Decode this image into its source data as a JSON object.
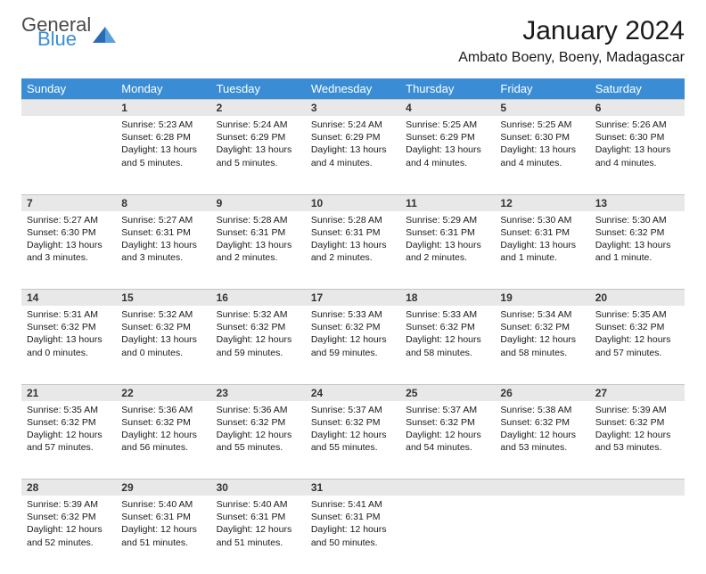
{
  "logo": {
    "general": "General",
    "blue": "Blue",
    "icon_color": "#2a6bb5"
  },
  "title": "January 2024",
  "location": "Ambato Boeny, Boeny, Madagascar",
  "colors": {
    "header_bg": "#3a8dd4",
    "header_fg": "#ffffff",
    "daynum_bg": "#e8e8e8",
    "cell_fg": "#1a1a1a"
  },
  "day_headers": [
    "Sunday",
    "Monday",
    "Tuesday",
    "Wednesday",
    "Thursday",
    "Friday",
    "Saturday"
  ],
  "weeks": [
    [
      null,
      {
        "n": "1",
        "sr": "Sunrise: 5:23 AM",
        "ss": "Sunset: 6:28 PM",
        "d1": "Daylight: 13 hours",
        "d2": "and 5 minutes."
      },
      {
        "n": "2",
        "sr": "Sunrise: 5:24 AM",
        "ss": "Sunset: 6:29 PM",
        "d1": "Daylight: 13 hours",
        "d2": "and 5 minutes."
      },
      {
        "n": "3",
        "sr": "Sunrise: 5:24 AM",
        "ss": "Sunset: 6:29 PM",
        "d1": "Daylight: 13 hours",
        "d2": "and 4 minutes."
      },
      {
        "n": "4",
        "sr": "Sunrise: 5:25 AM",
        "ss": "Sunset: 6:29 PM",
        "d1": "Daylight: 13 hours",
        "d2": "and 4 minutes."
      },
      {
        "n": "5",
        "sr": "Sunrise: 5:25 AM",
        "ss": "Sunset: 6:30 PM",
        "d1": "Daylight: 13 hours",
        "d2": "and 4 minutes."
      },
      {
        "n": "6",
        "sr": "Sunrise: 5:26 AM",
        "ss": "Sunset: 6:30 PM",
        "d1": "Daylight: 13 hours",
        "d2": "and 4 minutes."
      }
    ],
    [
      {
        "n": "7",
        "sr": "Sunrise: 5:27 AM",
        "ss": "Sunset: 6:30 PM",
        "d1": "Daylight: 13 hours",
        "d2": "and 3 minutes."
      },
      {
        "n": "8",
        "sr": "Sunrise: 5:27 AM",
        "ss": "Sunset: 6:31 PM",
        "d1": "Daylight: 13 hours",
        "d2": "and 3 minutes."
      },
      {
        "n": "9",
        "sr": "Sunrise: 5:28 AM",
        "ss": "Sunset: 6:31 PM",
        "d1": "Daylight: 13 hours",
        "d2": "and 2 minutes."
      },
      {
        "n": "10",
        "sr": "Sunrise: 5:28 AM",
        "ss": "Sunset: 6:31 PM",
        "d1": "Daylight: 13 hours",
        "d2": "and 2 minutes."
      },
      {
        "n": "11",
        "sr": "Sunrise: 5:29 AM",
        "ss": "Sunset: 6:31 PM",
        "d1": "Daylight: 13 hours",
        "d2": "and 2 minutes."
      },
      {
        "n": "12",
        "sr": "Sunrise: 5:30 AM",
        "ss": "Sunset: 6:31 PM",
        "d1": "Daylight: 13 hours",
        "d2": "and 1 minute."
      },
      {
        "n": "13",
        "sr": "Sunrise: 5:30 AM",
        "ss": "Sunset: 6:32 PM",
        "d1": "Daylight: 13 hours",
        "d2": "and 1 minute."
      }
    ],
    [
      {
        "n": "14",
        "sr": "Sunrise: 5:31 AM",
        "ss": "Sunset: 6:32 PM",
        "d1": "Daylight: 13 hours",
        "d2": "and 0 minutes."
      },
      {
        "n": "15",
        "sr": "Sunrise: 5:32 AM",
        "ss": "Sunset: 6:32 PM",
        "d1": "Daylight: 13 hours",
        "d2": "and 0 minutes."
      },
      {
        "n": "16",
        "sr": "Sunrise: 5:32 AM",
        "ss": "Sunset: 6:32 PM",
        "d1": "Daylight: 12 hours",
        "d2": "and 59 minutes."
      },
      {
        "n": "17",
        "sr": "Sunrise: 5:33 AM",
        "ss": "Sunset: 6:32 PM",
        "d1": "Daylight: 12 hours",
        "d2": "and 59 minutes."
      },
      {
        "n": "18",
        "sr": "Sunrise: 5:33 AM",
        "ss": "Sunset: 6:32 PM",
        "d1": "Daylight: 12 hours",
        "d2": "and 58 minutes."
      },
      {
        "n": "19",
        "sr": "Sunrise: 5:34 AM",
        "ss": "Sunset: 6:32 PM",
        "d1": "Daylight: 12 hours",
        "d2": "and 58 minutes."
      },
      {
        "n": "20",
        "sr": "Sunrise: 5:35 AM",
        "ss": "Sunset: 6:32 PM",
        "d1": "Daylight: 12 hours",
        "d2": "and 57 minutes."
      }
    ],
    [
      {
        "n": "21",
        "sr": "Sunrise: 5:35 AM",
        "ss": "Sunset: 6:32 PM",
        "d1": "Daylight: 12 hours",
        "d2": "and 57 minutes."
      },
      {
        "n": "22",
        "sr": "Sunrise: 5:36 AM",
        "ss": "Sunset: 6:32 PM",
        "d1": "Daylight: 12 hours",
        "d2": "and 56 minutes."
      },
      {
        "n": "23",
        "sr": "Sunrise: 5:36 AM",
        "ss": "Sunset: 6:32 PM",
        "d1": "Daylight: 12 hours",
        "d2": "and 55 minutes."
      },
      {
        "n": "24",
        "sr": "Sunrise: 5:37 AM",
        "ss": "Sunset: 6:32 PM",
        "d1": "Daylight: 12 hours",
        "d2": "and 55 minutes."
      },
      {
        "n": "25",
        "sr": "Sunrise: 5:37 AM",
        "ss": "Sunset: 6:32 PM",
        "d1": "Daylight: 12 hours",
        "d2": "and 54 minutes."
      },
      {
        "n": "26",
        "sr": "Sunrise: 5:38 AM",
        "ss": "Sunset: 6:32 PM",
        "d1": "Daylight: 12 hours",
        "d2": "and 53 minutes."
      },
      {
        "n": "27",
        "sr": "Sunrise: 5:39 AM",
        "ss": "Sunset: 6:32 PM",
        "d1": "Daylight: 12 hours",
        "d2": "and 53 minutes."
      }
    ],
    [
      {
        "n": "28",
        "sr": "Sunrise: 5:39 AM",
        "ss": "Sunset: 6:32 PM",
        "d1": "Daylight: 12 hours",
        "d2": "and 52 minutes."
      },
      {
        "n": "29",
        "sr": "Sunrise: 5:40 AM",
        "ss": "Sunset: 6:31 PM",
        "d1": "Daylight: 12 hours",
        "d2": "and 51 minutes."
      },
      {
        "n": "30",
        "sr": "Sunrise: 5:40 AM",
        "ss": "Sunset: 6:31 PM",
        "d1": "Daylight: 12 hours",
        "d2": "and 51 minutes."
      },
      {
        "n": "31",
        "sr": "Sunrise: 5:41 AM",
        "ss": "Sunset: 6:31 PM",
        "d1": "Daylight: 12 hours",
        "d2": "and 50 minutes."
      },
      null,
      null,
      null
    ]
  ]
}
